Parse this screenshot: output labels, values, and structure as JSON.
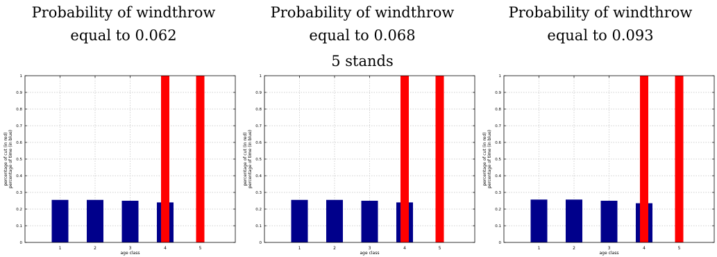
{
  "header": {
    "center_title": "5 stands",
    "panel_titles": [
      {
        "line1": "Probability of windthrow",
        "line2": "equal to 0.062"
      },
      {
        "line1": "Probability of windthrow",
        "line2": "equal to 0.068"
      },
      {
        "line1": "Probability of windthrow",
        "line2": "equal to 0.093"
      }
    ]
  },
  "colors": {
    "time_bar": "#00008b",
    "cut_bar": "#ff0000",
    "grid": "#bfbfbf",
    "axis": "#000000"
  },
  "chart_data": [
    {
      "type": "bar",
      "title": "Probability of windthrow equal to 0.062",
      "xlabel": "age class",
      "ylabel_lines": [
        "percentage of cut (in red)",
        "percentage of time (in blue)"
      ],
      "categories": [
        "1",
        "2",
        "3",
        "4",
        "5"
      ],
      "yticks": [
        "0",
        "0.1",
        "0.2",
        "0.3",
        "0.4",
        "0.5",
        "0.6",
        "0.7",
        "0.8",
        "0.9",
        "1"
      ],
      "ylim": [
        0,
        1
      ],
      "grid": true,
      "series": [
        {
          "color": "blue",
          "values": [
            0.255,
            0.255,
            0.25,
            0.24,
            0
          ]
        },
        {
          "color": "red",
          "values": [
            0,
            0,
            0,
            1,
            1
          ]
        }
      ]
    },
    {
      "type": "bar",
      "title": "Probability of windthrow equal to 0.068",
      "xlabel": "age class",
      "ylabel_lines": [
        "percentage of cut (in red)",
        "percentage of time (in blue)"
      ],
      "categories": [
        "1",
        "2",
        "3",
        "4",
        "5"
      ],
      "yticks": [
        "0",
        "0.1",
        "0.2",
        "0.3",
        "0.4",
        "0.5",
        "0.6",
        "0.7",
        "0.8",
        "0.9",
        "1"
      ],
      "ylim": [
        0,
        1
      ],
      "grid": true,
      "series": [
        {
          "color": "blue",
          "values": [
            0.255,
            0.255,
            0.25,
            0.24,
            0
          ]
        },
        {
          "color": "red",
          "values": [
            0,
            0,
            0,
            1,
            1
          ]
        }
      ]
    },
    {
      "type": "bar",
      "title": "Probability of windthrow equal to 0.093",
      "xlabel": "age class",
      "ylabel_lines": [
        "percentage of cut (in red)",
        "percentage of time (in blue)"
      ],
      "categories": [
        "1",
        "2",
        "3",
        "4",
        "5"
      ],
      "yticks": [
        "0",
        "0.1",
        "0.2",
        "0.3",
        "0.4",
        "0.5",
        "0.6",
        "0.7",
        "0.8",
        "0.9",
        "1"
      ],
      "ylim": [
        0,
        1
      ],
      "grid": true,
      "series": [
        {
          "color": "blue",
          "values": [
            0.257,
            0.257,
            0.25,
            0.235,
            0
          ]
        },
        {
          "color": "red",
          "values": [
            0,
            0,
            0,
            1,
            1
          ]
        }
      ]
    }
  ]
}
